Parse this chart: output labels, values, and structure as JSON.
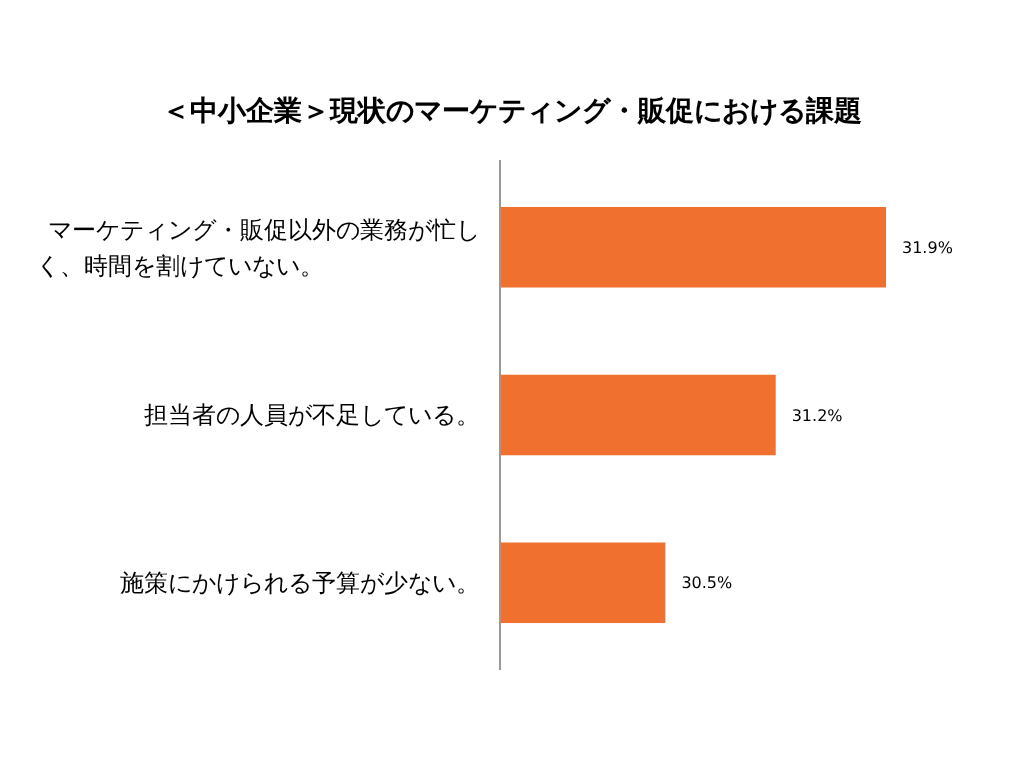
{
  "chart_data": {
    "type": "bar",
    "orientation": "horizontal",
    "title": "＜中小企業＞現状のマーケティング・販促における課題",
    "categories": [
      "マーケティング・販促以外の業務が忙しく、時間を割けていない。",
      "担当者の人員が不足している。",
      "施策にかけられる予算が少ない。"
    ],
    "values": [
      31.9,
      31.2,
      30.5
    ],
    "value_labels": [
      "31.9%",
      "31.2%",
      "30.5%"
    ],
    "color": "#f07030",
    "xlim": [
      29.45,
      31.9
    ],
    "tick_labels": "y"
  }
}
